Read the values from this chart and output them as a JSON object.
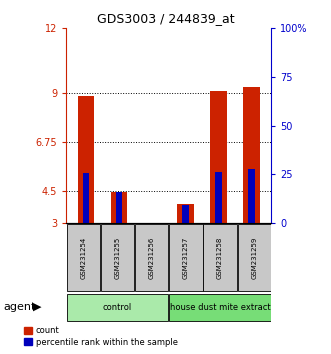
{
  "title": "GDS3003 / 244839_at",
  "samples": [
    "GSM231254",
    "GSM231255",
    "GSM231256",
    "GSM231257",
    "GSM231258",
    "GSM231259"
  ],
  "groups": [
    "control",
    "control",
    "control",
    "house dust mite extract",
    "house dust mite extract",
    "house dust mite extract"
  ],
  "count_values": [
    8.85,
    4.45,
    3.0,
    3.9,
    9.1,
    9.3
  ],
  "percentile_values": [
    5.3,
    4.45,
    3.0,
    3.85,
    5.35,
    5.5
  ],
  "ylim_left": [
    3,
    12
  ],
  "ylim_right": [
    0,
    100
  ],
  "yticks_left": [
    3,
    4.5,
    6.75,
    9,
    12
  ],
  "yticks_right": [
    0,
    25,
    50,
    75,
    100
  ],
  "ytick_labels_left": [
    "3",
    "4.5",
    "6.75",
    "9",
    "12"
  ],
  "ytick_labels_right": [
    "0",
    "25",
    "50",
    "75",
    "100%"
  ],
  "left_axis_color": "#CC2200",
  "right_axis_color": "#0000CC",
  "count_color": "#CC2200",
  "percentile_color": "#0000BB",
  "bg_color": "#FFFFFF",
  "sample_bg_color": "#C8C8C8",
  "group_colors": {
    "control": "#AAEAAA",
    "house dust mite extract": "#77DD77"
  },
  "bar_width": 0.5,
  "figsize": [
    3.31,
    3.54
  ],
  "dpi": 100,
  "title_fontsize": 9,
  "tick_fontsize": 7,
  "sample_fontsize": 5,
  "group_fontsize": 6,
  "legend_fontsize": 6,
  "agent_fontsize": 8
}
